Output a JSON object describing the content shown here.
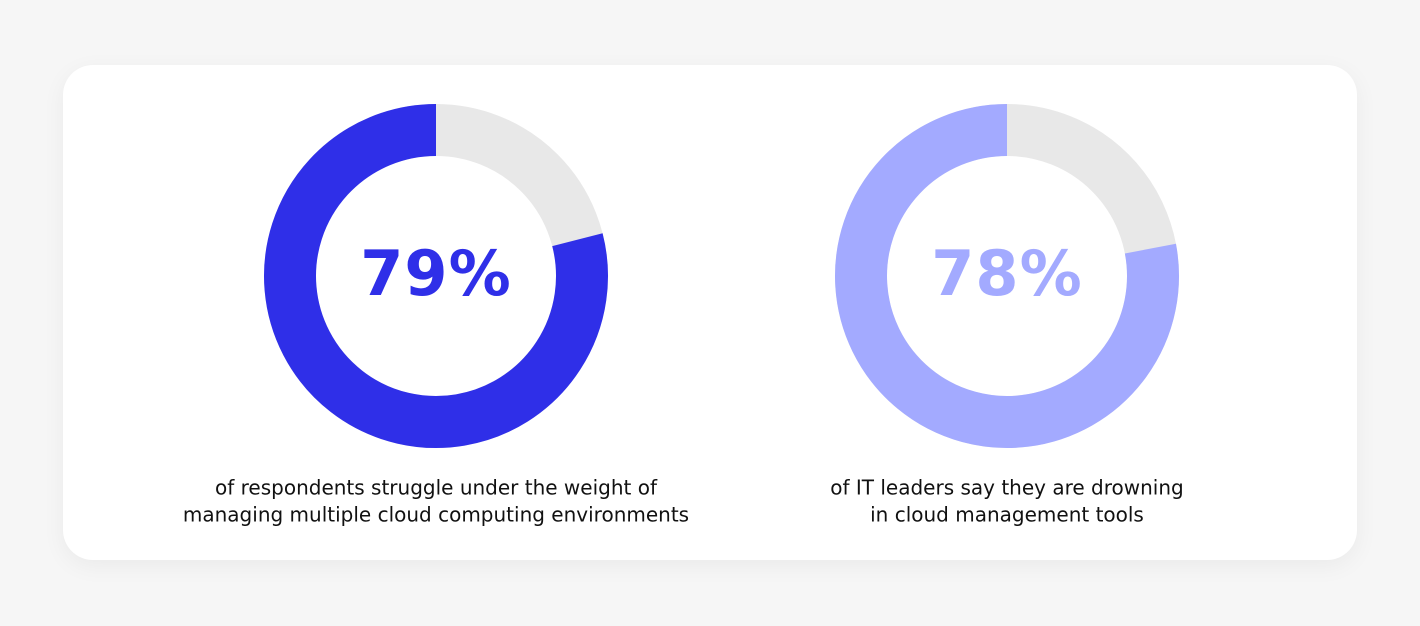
{
  "chart_data": [
    {
      "type": "donut",
      "values": [
        79
      ],
      "value_labels": [
        "79%"
      ],
      "color": "#2f2fe8",
      "caption": [
        "of respondents struggle under the weight of",
        "managing multiple cloud computing environments"
      ]
    },
    {
      "type": "donut",
      "values": [
        78
      ],
      "value_labels": [
        "78%"
      ],
      "color": "#a3aaff",
      "caption": [
        "of IT leaders say they are drowning",
        "in cloud management tools"
      ]
    }
  ]
}
